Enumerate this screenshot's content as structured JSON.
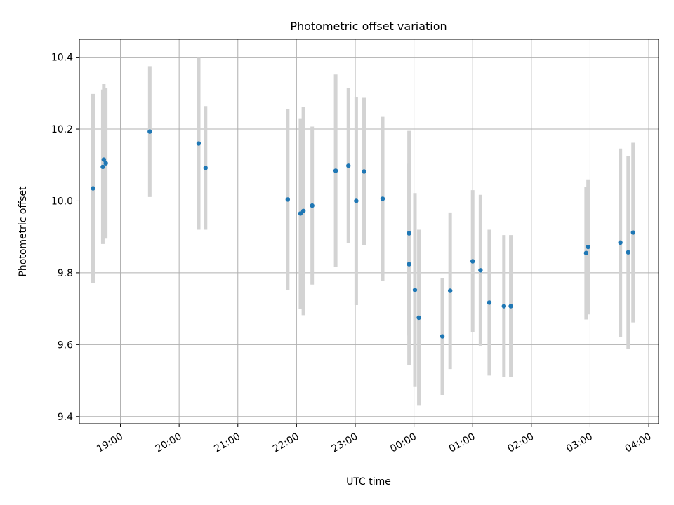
{
  "chart_data": {
    "type": "scatter",
    "title": "Photometric offset variation",
    "xlabel": "UTC time",
    "ylabel": "Photometric offset",
    "grid": true,
    "xlim": [
      "18:18",
      "04:10"
    ],
    "ylim": [
      9.38,
      10.45
    ],
    "x_ticks": [
      "19:00",
      "20:00",
      "21:00",
      "22:00",
      "23:00",
      "00:00",
      "01:00",
      "02:00",
      "03:00",
      "04:00"
    ],
    "y_ticks": [
      "9.4",
      "9.6",
      "9.8",
      "10.0",
      "10.2",
      "10.4"
    ],
    "point_color": "#1f77b4",
    "errorbar_color": "#d3d3d3",
    "points": [
      {
        "time": "18:32",
        "y": 10.035,
        "err": 0.263
      },
      {
        "time": "18:42",
        "y": 10.095,
        "err": 0.215
      },
      {
        "time": "18:43",
        "y": 10.115,
        "err": 0.21
      },
      {
        "time": "18:45",
        "y": 10.105,
        "err": 0.21
      },
      {
        "time": "19:30",
        "y": 10.193,
        "err": 0.182
      },
      {
        "time": "20:20",
        "y": 10.16,
        "err": 0.24
      },
      {
        "time": "20:27",
        "y": 10.092,
        "err": 0.172
      },
      {
        "time": "21:51",
        "y": 10.004,
        "err": 0.252
      },
      {
        "time": "22:04",
        "y": 9.965,
        "err": 0.265
      },
      {
        "time": "22:07",
        "y": 9.972,
        "err": 0.29
      },
      {
        "time": "22:16",
        "y": 9.987,
        "err": 0.22
      },
      {
        "time": "22:40",
        "y": 10.084,
        "err": 0.268
      },
      {
        "time": "22:53",
        "y": 10.098,
        "err": 0.216
      },
      {
        "time": "23:01",
        "y": 10.0,
        "err": 0.29
      },
      {
        "time": "23:09",
        "y": 10.082,
        "err": 0.205
      },
      {
        "time": "23:28",
        "y": 10.006,
        "err": 0.228
      },
      {
        "time": "23:55",
        "y": 9.91,
        "err": 0.285
      },
      {
        "time": "23:55",
        "y": 9.824,
        "err": 0.28
      },
      {
        "time": "00:01",
        "y": 9.752,
        "err": 0.27
      },
      {
        "time": "00:05",
        "y": 9.675,
        "err": 0.245
      },
      {
        "time": "00:29",
        "y": 9.623,
        "err": 0.163
      },
      {
        "time": "00:37",
        "y": 9.75,
        "err": 0.218
      },
      {
        "time": "01:00",
        "y": 9.832,
        "err": 0.198
      },
      {
        "time": "01:08",
        "y": 9.807,
        "err": 0.21
      },
      {
        "time": "01:17",
        "y": 9.717,
        "err": 0.203
      },
      {
        "time": "01:32",
        "y": 9.707,
        "err": 0.198
      },
      {
        "time": "01:39",
        "y": 9.707,
        "err": 0.198
      },
      {
        "time": "02:56",
        "y": 9.855,
        "err": 0.185
      },
      {
        "time": "02:58",
        "y": 9.872,
        "err": 0.188
      },
      {
        "time": "03:31",
        "y": 9.884,
        "err": 0.262
      },
      {
        "time": "03:39",
        "y": 9.857,
        "err": 0.268
      },
      {
        "time": "03:44",
        "y": 9.912,
        "err": 0.25
      }
    ]
  }
}
